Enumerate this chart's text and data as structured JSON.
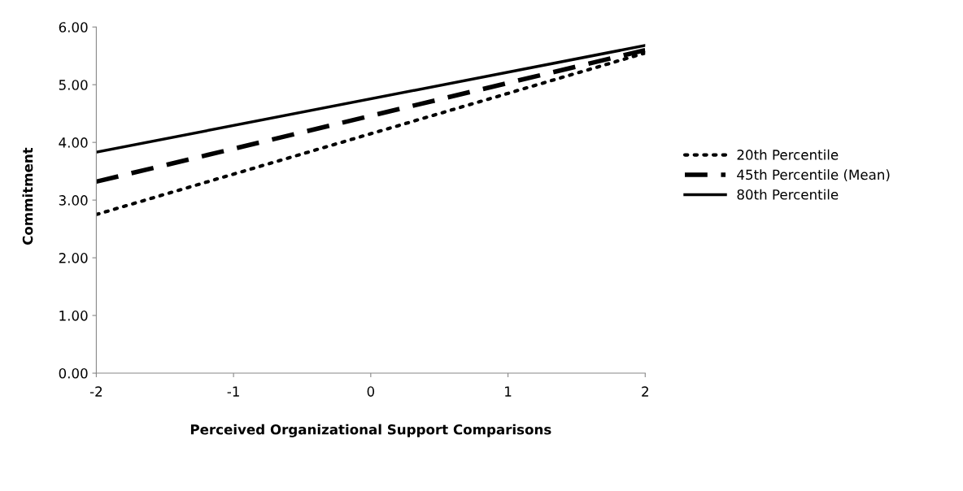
{
  "chart_data": {
    "type": "line",
    "xlabel": "Perceived Organizational Support Comparisons",
    "ylabel": "Commitment",
    "x": [
      -2,
      2
    ],
    "series": [
      {
        "name": "20th Percentile",
        "color": "#000000",
        "values": [
          2.75,
          5.55
        ],
        "line_style": "dotted"
      },
      {
        "name": "45th Percentile (Mean)",
        "color": "#000000",
        "values": [
          3.32,
          5.6
        ],
        "line_style": "dashed"
      },
      {
        "name": "80th Percentile",
        "color": "#000000",
        "values": [
          3.83,
          5.68
        ],
        "line_style": "solid"
      }
    ],
    "xlim": [
      -2,
      2
    ],
    "xticks": [
      -2,
      -1,
      0,
      1,
      2
    ],
    "ylim": [
      0,
      6
    ],
    "yticks": [
      {
        "value": 0,
        "label": "0.00"
      },
      {
        "value": 1,
        "label": "1.00"
      },
      {
        "value": 2,
        "label": "2.00"
      },
      {
        "value": 3,
        "label": "3.00"
      },
      {
        "value": 4,
        "label": "4.00"
      },
      {
        "value": 5,
        "label": "5.00"
      },
      {
        "value": 6,
        "label": "6.00"
      }
    ],
    "grid": false,
    "legend": "right",
    "marker": "none"
  }
}
